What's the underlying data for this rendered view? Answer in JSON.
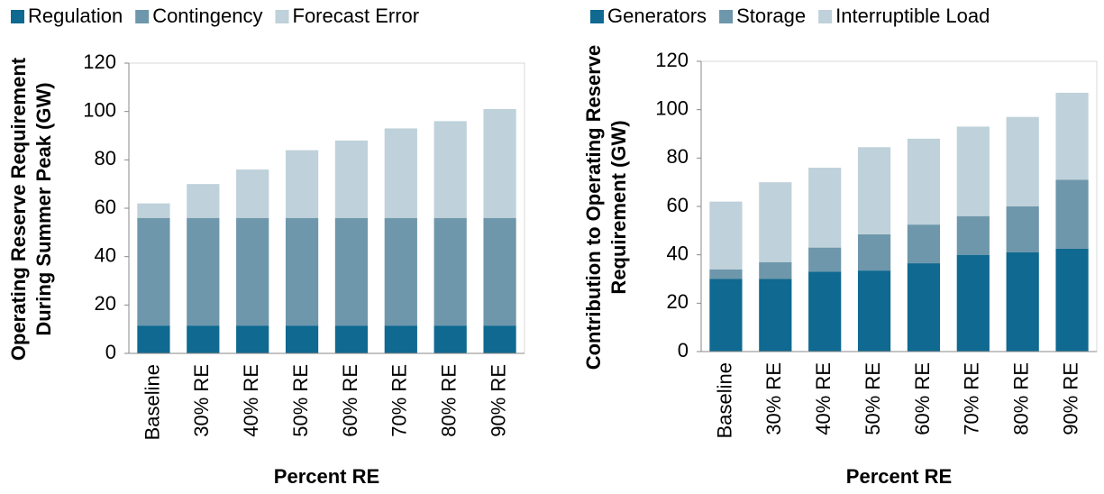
{
  "chart_data": [
    {
      "type": "stacked_bar",
      "categories": [
        "Baseline",
        "30% RE",
        "40% RE",
        "50% RE",
        "60% RE",
        "70% RE",
        "80% RE",
        "90% RE"
      ],
      "series": [
        {
          "name": "Regulation",
          "color": "#0f6990",
          "values": [
            11.5,
            11.5,
            11.5,
            11.5,
            11.5,
            11.5,
            11.5,
            11.5
          ]
        },
        {
          "name": "Contingency",
          "color": "#6e97ab",
          "values": [
            44.5,
            44.5,
            44.5,
            44.5,
            44.5,
            44.5,
            44.5,
            44.5
          ]
        },
        {
          "name": "Forecast Error",
          "color": "#bfd1da",
          "values": [
            6,
            14,
            20,
            28,
            32,
            37,
            40,
            45
          ]
        }
      ],
      "ylabel": [
        "Operating Reserve Requirement",
        "During Summer Peak (GW)"
      ],
      "xlabel": "Percent RE",
      "ylim": [
        0,
        120
      ],
      "yticks": [
        0,
        20,
        40,
        60,
        80,
        100,
        120
      ],
      "legend": "top",
      "grid": false
    },
    {
      "type": "stacked_bar",
      "categories": [
        "Baseline",
        "30% RE",
        "40% RE",
        "50% RE",
        "60% RE",
        "70% RE",
        "80% RE",
        "90% RE"
      ],
      "series": [
        {
          "name": "Generators",
          "color": "#0f6990",
          "values": [
            30,
            30,
            33,
            33.5,
            36.5,
            40,
            41,
            42.5
          ]
        },
        {
          "name": "Storage",
          "color": "#6e97ab",
          "values": [
            4,
            7,
            10,
            15,
            16,
            16,
            19,
            28.5
          ]
        },
        {
          "name": "Interruptible Load",
          "color": "#bfd1da",
          "values": [
            28,
            33,
            33,
            36,
            35.5,
            37,
            37,
            36
          ]
        }
      ],
      "ylabel": [
        "Contribution to Operating Reserve",
        "Requirement (GW)"
      ],
      "xlabel": "Percent RE",
      "ylim": [
        0,
        120
      ],
      "yticks": [
        0,
        20,
        40,
        60,
        80,
        100,
        120
      ],
      "legend": "top",
      "grid": false
    }
  ]
}
